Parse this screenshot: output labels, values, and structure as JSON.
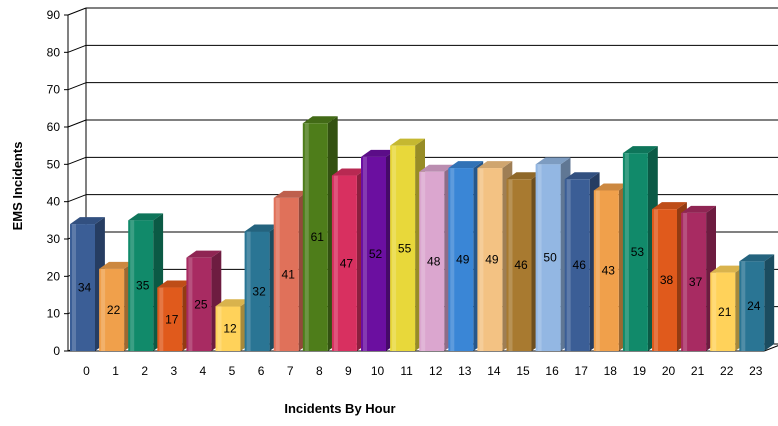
{
  "chart_data": {
    "type": "bar",
    "title": "",
    "xlabel": "Incidents By Hour",
    "ylabel": "EMS Incidents",
    "categories": [
      "0",
      "1",
      "2",
      "3",
      "4",
      "5",
      "6",
      "7",
      "8",
      "9",
      "10",
      "11",
      "12",
      "13",
      "14",
      "15",
      "16",
      "17",
      "18",
      "19",
      "20",
      "21",
      "22",
      "23"
    ],
    "values": [
      34,
      22,
      35,
      17,
      25,
      12,
      32,
      41,
      61,
      47,
      52,
      55,
      48,
      49,
      49,
      46,
      50,
      46,
      43,
      53,
      38,
      37,
      21,
      24
    ],
    "ylim": [
      0,
      90
    ],
    "yticks": [
      0,
      10,
      20,
      30,
      40,
      50,
      60,
      70,
      80,
      90
    ],
    "grid": true,
    "legend": "none",
    "colors": [
      "#3b5e96",
      "#f0a04b",
      "#118a6a",
      "#e05a1c",
      "#a82b62",
      "#ffd25a",
      "#2a7594",
      "#e0715a",
      "#4e7d1a",
      "#d83060",
      "#6b0fa0",
      "#e8d83a",
      "#dba6cf",
      "#3a86d6",
      "#f3c283",
      "#a87a30",
      "#93b7e3",
      "#3b5e96",
      "#f0a04b",
      "#118a6a",
      "#e05a1c",
      "#a82b62",
      "#ffd25a",
      "#2a7594"
    ]
  }
}
